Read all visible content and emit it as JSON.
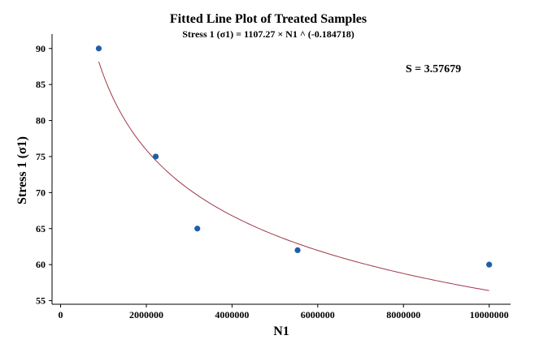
{
  "chart_data": {
    "type": "scatter",
    "title": "Fitted Line Plot of Treated Samples",
    "subtitle": "Stress 1 (σ1) = 1107.27 × N1 ^ (-0.184718)",
    "xlabel": "N1",
    "ylabel": "Stress 1 (σ1)",
    "xlim": [
      -200000,
      10500000
    ],
    "ylim": [
      54.5,
      92
    ],
    "xticks": [
      0,
      2000000,
      4000000,
      6000000,
      8000000,
      10000000
    ],
    "xtick_labels": [
      "0",
      "2000000",
      "4000000",
      "6000000",
      "8000000",
      "10000000"
    ],
    "yticks": [
      55,
      60,
      65,
      70,
      75,
      80,
      85,
      90
    ],
    "ytick_labels": [
      "55",
      "60",
      "65",
      "70",
      "75",
      "80",
      "85",
      "90"
    ],
    "series": [
      {
        "name": "Treated Samples",
        "x": [
          890000,
          2220000,
          3190000,
          5530000,
          10000000
        ],
        "y": [
          90,
          75,
          65,
          62,
          60
        ],
        "color": "#1f5fa8"
      }
    ],
    "fit": {
      "coefficient": 1107.27,
      "exponent": -0.184718,
      "x_range": [
        890000,
        10000000
      ],
      "color": "#9e3a4a"
    },
    "annotation": "S = 3.57679"
  }
}
